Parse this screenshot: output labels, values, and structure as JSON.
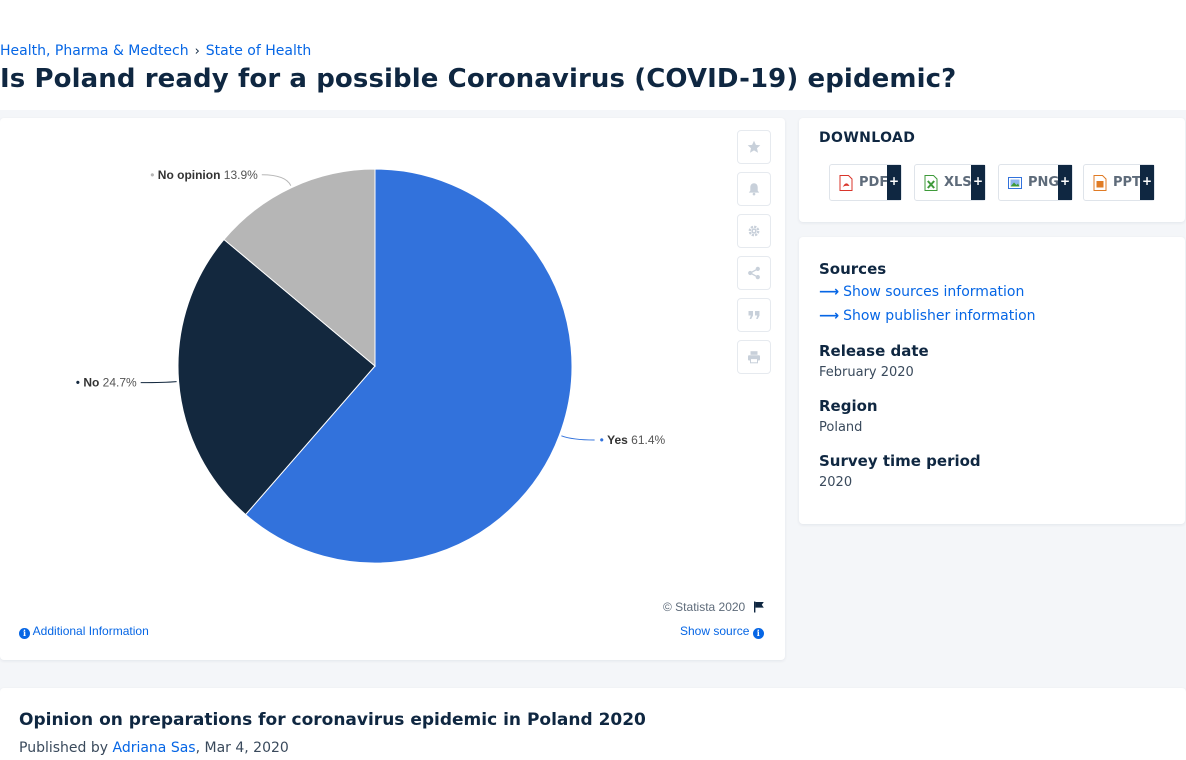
{
  "breadcrumb": {
    "parent": "Health, Pharma & Medtech",
    "separator": "›",
    "current": "State of Health"
  },
  "page": {
    "title": "Is Poland ready for a possible Coronavirus (COVID-19) epidemic?"
  },
  "chart_data": {
    "type": "pie",
    "title": "",
    "slices": [
      {
        "label": "Yes",
        "value": 61.4,
        "display": "61.4%",
        "color": "#3272dc"
      },
      {
        "label": "No",
        "value": 24.7,
        "display": "24.7%",
        "color": "#13283e"
      },
      {
        "label": "No opinion",
        "value": 13.9,
        "display": "13.9%",
        "color": "#b6b6b6"
      }
    ],
    "legend": "none",
    "data_labels": true
  },
  "chart_footer": {
    "copyright": "© Statista 2020",
    "additional_info": "Additional Information",
    "show_source": "Show source"
  },
  "tools": [
    "star-icon",
    "bell-icon",
    "gear-icon",
    "share-icon",
    "quote-icon",
    "print-icon"
  ],
  "download": {
    "title": "DOWNLOAD",
    "formats": [
      {
        "label": "PDF",
        "plus": "+",
        "icon": "pdf-file-icon",
        "color": "#d9352b"
      },
      {
        "label": "XLS",
        "plus": "+",
        "icon": "xls-file-icon",
        "color": "#3e9a3a"
      },
      {
        "label": "PNG",
        "plus": "+",
        "icon": "png-file-icon",
        "color": "#3272dc"
      },
      {
        "label": "PPT",
        "plus": "+",
        "icon": "ppt-file-icon",
        "color": "#e07b24"
      }
    ]
  },
  "meta": {
    "sources_heading": "Sources",
    "show_sources": "Show sources information",
    "show_publisher": "Show publisher information",
    "release_heading": "Release date",
    "release_value": "February 2020",
    "region_heading": "Region",
    "region_value": "Poland",
    "survey_heading": "Survey time period",
    "survey_value": "2020"
  },
  "bottom": {
    "title": "Opinion on preparations for coronavirus epidemic in Poland 2020",
    "published_prefix": "Published by ",
    "author": "Adriana Sas",
    "date": ", Mar 4, 2020"
  },
  "colors": {
    "accent": "#0666e5",
    "navy": "#0f2741"
  }
}
